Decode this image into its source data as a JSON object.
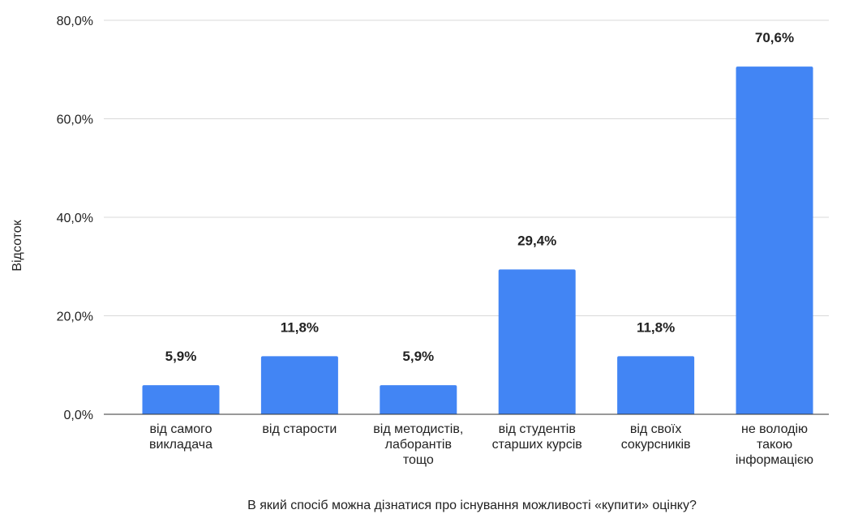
{
  "chart_data": {
    "type": "bar",
    "title": "",
    "xlabel": "В який спосіб можна дізнатися про існування можливості «купити» оцінку?",
    "ylabel": "Відсоток",
    "ylim": [
      0,
      80
    ],
    "yticks": [
      "0,0%",
      "20,0%",
      "40,0%",
      "60,0%",
      "80,0%"
    ],
    "grid": true,
    "legend": "none",
    "bar_color": "#4285f4",
    "categories": [
      [
        "від самого",
        "викладача"
      ],
      [
        "від старости"
      ],
      [
        "від методистів,",
        "лаборантів",
        "тощо"
      ],
      [
        "від студентів",
        "старших курсів"
      ],
      [
        "від своїх",
        "сокурсників"
      ],
      [
        "не володію",
        "такою",
        "інформацією"
      ]
    ],
    "values": [
      5.9,
      11.8,
      5.9,
      29.4,
      11.8,
      70.6
    ],
    "data_labels": [
      "5,9%",
      "11,8%",
      "5,9%",
      "29,4%",
      "11,8%",
      "70,6%"
    ]
  }
}
